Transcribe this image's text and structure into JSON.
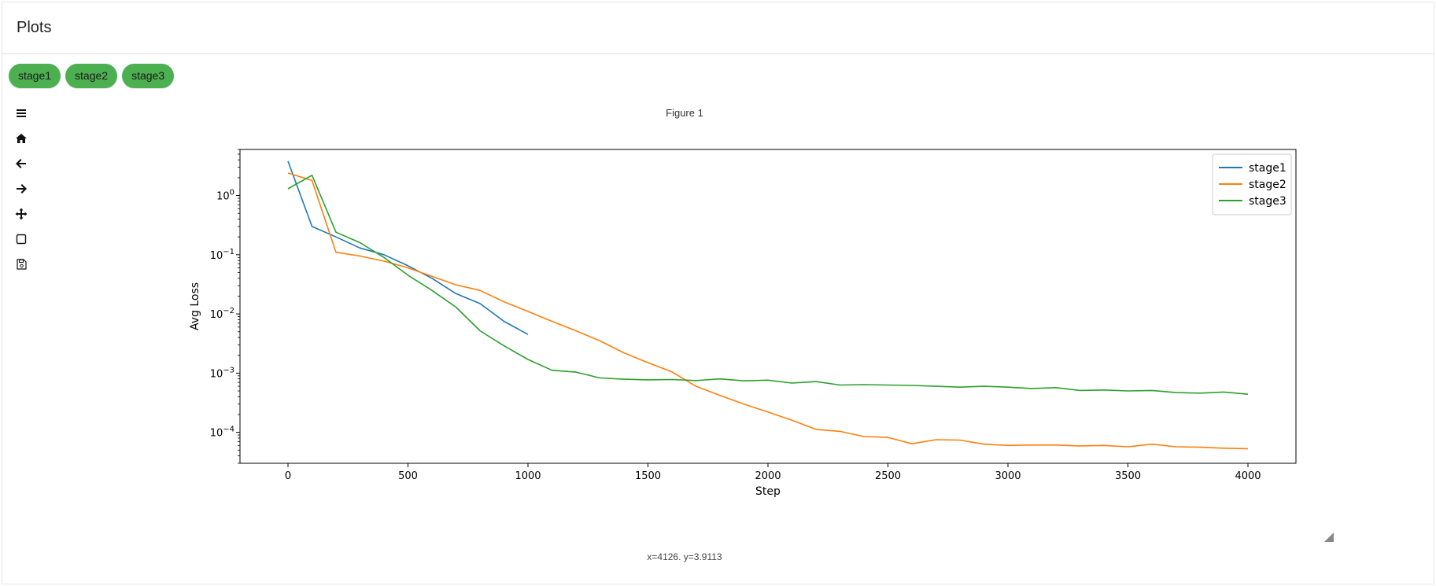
{
  "app": {
    "title": "Plots"
  },
  "chips": [
    {
      "label": "stage1"
    },
    {
      "label": "stage2"
    },
    {
      "label": "stage3"
    }
  ],
  "toolbar": [
    {
      "name": "menu-icon"
    },
    {
      "name": "home-icon"
    },
    {
      "name": "back-icon"
    },
    {
      "name": "forward-icon"
    },
    {
      "name": "pan-icon"
    },
    {
      "name": "zoom-rect-icon"
    },
    {
      "name": "save-icon"
    }
  ],
  "figure": {
    "title": "Figure 1",
    "status": "x=4126. y=3.9113"
  },
  "colors": {
    "chip": "#4caf50",
    "stage1": "#1f77b4",
    "stage2": "#ff7f0e",
    "stage3": "#2ca02c"
  },
  "chart_data": {
    "type": "line",
    "xlabel": "Step",
    "ylabel": "Avg Loss",
    "yscale": "log",
    "xlim": [
      -200,
      4200
    ],
    "ylim": [
      3e-05,
      6
    ],
    "xticks": [
      0,
      500,
      1000,
      1500,
      2000,
      2500,
      3000,
      3500,
      4000
    ],
    "yticks": [
      {
        "value": 1,
        "base": "10",
        "exp": "0"
      },
      {
        "value": 0.1,
        "base": "10",
        "exp": "−1"
      },
      {
        "value": 0.01,
        "base": "10",
        "exp": "−2"
      },
      {
        "value": 0.001,
        "base": "10",
        "exp": "−3"
      },
      {
        "value": 0.0001,
        "base": "10",
        "exp": "−4"
      }
    ],
    "grid": false,
    "legend_position": "top-right",
    "series": [
      {
        "name": "stage1",
        "x": [
          0,
          100,
          200,
          300,
          400,
          500,
          600,
          700,
          800,
          900,
          1000
        ],
        "y": [
          3.8,
          0.3,
          0.2,
          0.13,
          0.1,
          0.065,
          0.04,
          0.022,
          0.015,
          0.0075,
          0.0045
        ]
      },
      {
        "name": "stage2",
        "x": [
          0,
          100,
          200,
          300,
          400,
          500,
          600,
          700,
          800,
          900,
          1000,
          1100,
          1200,
          1300,
          1400,
          1500,
          1600,
          1700,
          1800,
          1900,
          2000,
          2100,
          2200,
          2300,
          2400,
          2500,
          2600,
          2700,
          2800,
          2900,
          3000,
          3100,
          3200,
          3300,
          3400,
          3500,
          3600,
          3700,
          3800,
          3900,
          4000
        ],
        "y": [
          2.4,
          1.8,
          0.11,
          0.095,
          0.078,
          0.06,
          0.043,
          0.031,
          0.025,
          0.016,
          0.011,
          0.0075,
          0.0052,
          0.0035,
          0.0022,
          0.0015,
          0.00105,
          0.0006,
          0.00042,
          0.0003,
          0.00022,
          0.00016,
          0.000112,
          0.000104,
          8.5e-05,
          8.2e-05,
          6.4e-05,
          7.5e-05,
          7.4e-05,
          6.3e-05,
          6e-05,
          6.1e-05,
          6.1e-05,
          5.9e-05,
          6e-05,
          5.7e-05,
          6.3e-05,
          5.7e-05,
          5.6e-05,
          5.4e-05,
          5.3e-05
        ]
      },
      {
        "name": "stage3",
        "x": [
          0,
          100,
          200,
          300,
          400,
          500,
          600,
          700,
          800,
          900,
          1000,
          1100,
          1200,
          1300,
          1400,
          1500,
          1600,
          1700,
          1800,
          1900,
          2000,
          2100,
          2200,
          2300,
          2400,
          2500,
          2600,
          2700,
          2800,
          2900,
          3000,
          3100,
          3200,
          3300,
          3400,
          3500,
          3600,
          3700,
          3800,
          3900,
          4000
        ],
        "y": [
          1.3,
          2.2,
          0.24,
          0.16,
          0.09,
          0.045,
          0.025,
          0.013,
          0.0052,
          0.0029,
          0.0017,
          0.00112,
          0.00104,
          0.00083,
          0.00079,
          0.00077,
          0.00078,
          0.00075,
          0.0008,
          0.00074,
          0.00076,
          0.00068,
          0.00072,
          0.00063,
          0.00064,
          0.00063,
          0.00062,
          0.0006,
          0.00058,
          0.0006,
          0.00058,
          0.00055,
          0.00057,
          0.00051,
          0.00052,
          0.0005,
          0.00051,
          0.00047,
          0.00046,
          0.00048,
          0.00044
        ]
      }
    ]
  }
}
